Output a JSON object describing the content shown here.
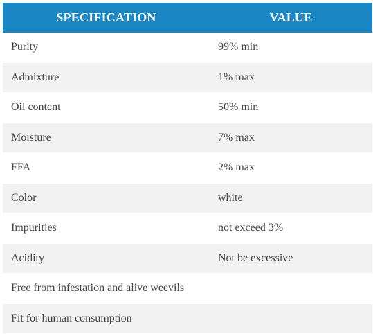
{
  "table": {
    "headers": [
      "SPECIFICATION",
      "VALUE"
    ],
    "rows": [
      {
        "spec": "Purity",
        "value": "99% min"
      },
      {
        "spec": "Admixture",
        "value": "1% max"
      },
      {
        "spec": "Oil content",
        "value": "50% min"
      },
      {
        "spec": "Moisture",
        "value": "7% max"
      },
      {
        "spec": "FFA",
        "value": "2% max"
      },
      {
        "spec": "Color",
        "value": "white"
      },
      {
        "spec": "Impurities",
        "value": "not exceed 3%"
      },
      {
        "spec": "Acidity",
        "value": "Not be excessive"
      },
      {
        "spec": "Free from infestation and alive weevils",
        "value": ""
      },
      {
        "spec": "Fit for human consumption",
        "value": ""
      }
    ]
  },
  "colors": {
    "header_bg": "#1a87c4",
    "header_text": "#ffffff",
    "alt_row_bg": "#f2f2f2",
    "body_text": "#444444"
  }
}
